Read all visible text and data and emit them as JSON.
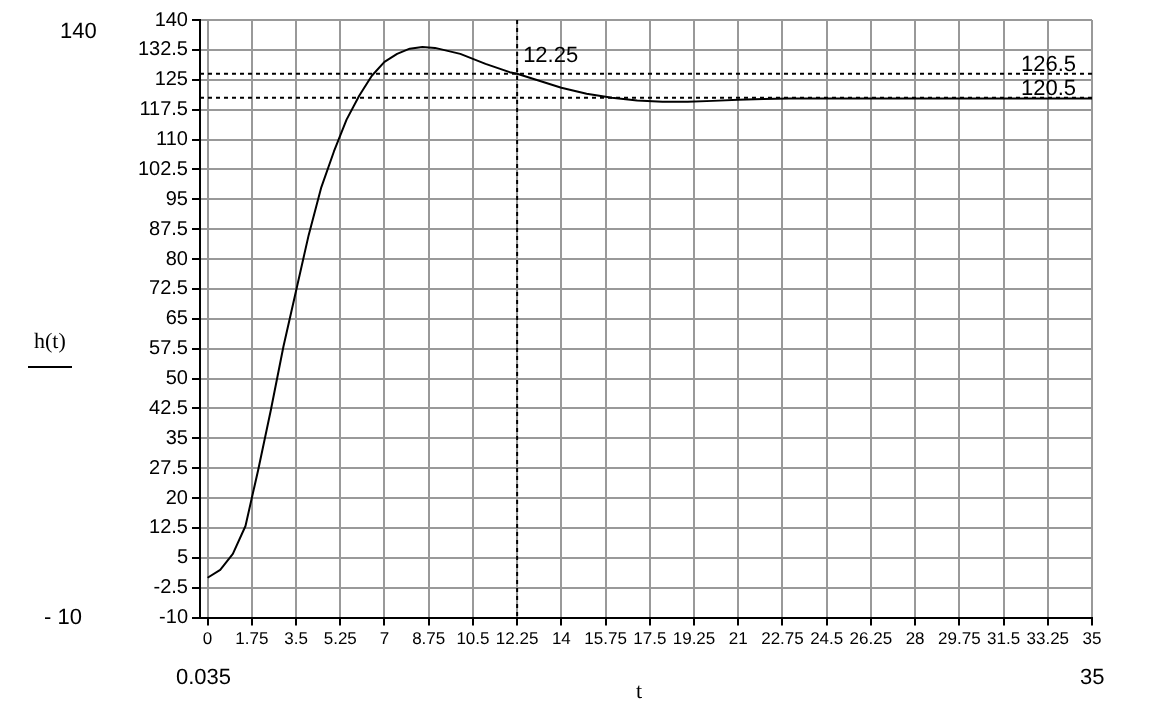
{
  "chart_data": {
    "type": "line",
    "xlabel": "t",
    "ylabel": "h(t)",
    "series": [
      {
        "color": "#000000",
        "x": [
          0,
          0.5,
          1,
          1.5,
          1.75,
          2,
          2.5,
          3,
          3.5,
          4,
          4.5,
          5,
          5.5,
          6,
          6.5,
          7,
          7.5,
          8,
          8.5,
          9,
          10,
          11,
          12,
          12.25,
          13,
          14,
          15,
          16,
          17,
          18,
          19,
          20,
          21,
          22,
          23,
          25,
          30,
          35
        ],
        "values": [
          0,
          2,
          6,
          13,
          20,
          27,
          42,
          58,
          72,
          86,
          98,
          107,
          115,
          121,
          126,
          129.5,
          131.5,
          132.8,
          133.2,
          133,
          131.5,
          129,
          126.8,
          126.5,
          125,
          123,
          121.5,
          120.5,
          119.8,
          119.5,
          119.5,
          119.7,
          120,
          120.2,
          120.3,
          120.3,
          120.3,
          120.3
        ]
      }
    ],
    "xlim": [
      -0.3,
      35
    ],
    "ylim": [
      -10,
      140
    ],
    "xticks": [
      0,
      1.75,
      3.5,
      5.25,
      7,
      8.75,
      10.5,
      12.25,
      14,
      15.75,
      17.5,
      19.25,
      21,
      22.75,
      24.5,
      26.25,
      28,
      29.75,
      31.5,
      33.25,
      35
    ],
    "yticks": [
      -10,
      -2.5,
      5,
      12.5,
      20,
      27.5,
      35,
      42.5,
      50,
      57.5,
      65,
      72.5,
      80,
      87.5,
      95,
      102.5,
      110,
      117.5,
      125,
      132.5,
      140
    ],
    "ref_lines": [
      {
        "axis": "x",
        "value": 12.25,
        "label": "12.25",
        "line_style": "dotted"
      },
      {
        "axis": "y",
        "value": 126.5,
        "label": "126.5",
        "line_style": "dotted"
      },
      {
        "axis": "y",
        "value": 120.5,
        "label": "120.5",
        "line_style": "dotted"
      }
    ],
    "annotations": [
      "140",
      "- 10",
      "0.035",
      "35"
    ],
    "grid": true,
    "marker": "none",
    "line_style": "solid",
    "legend": false
  }
}
